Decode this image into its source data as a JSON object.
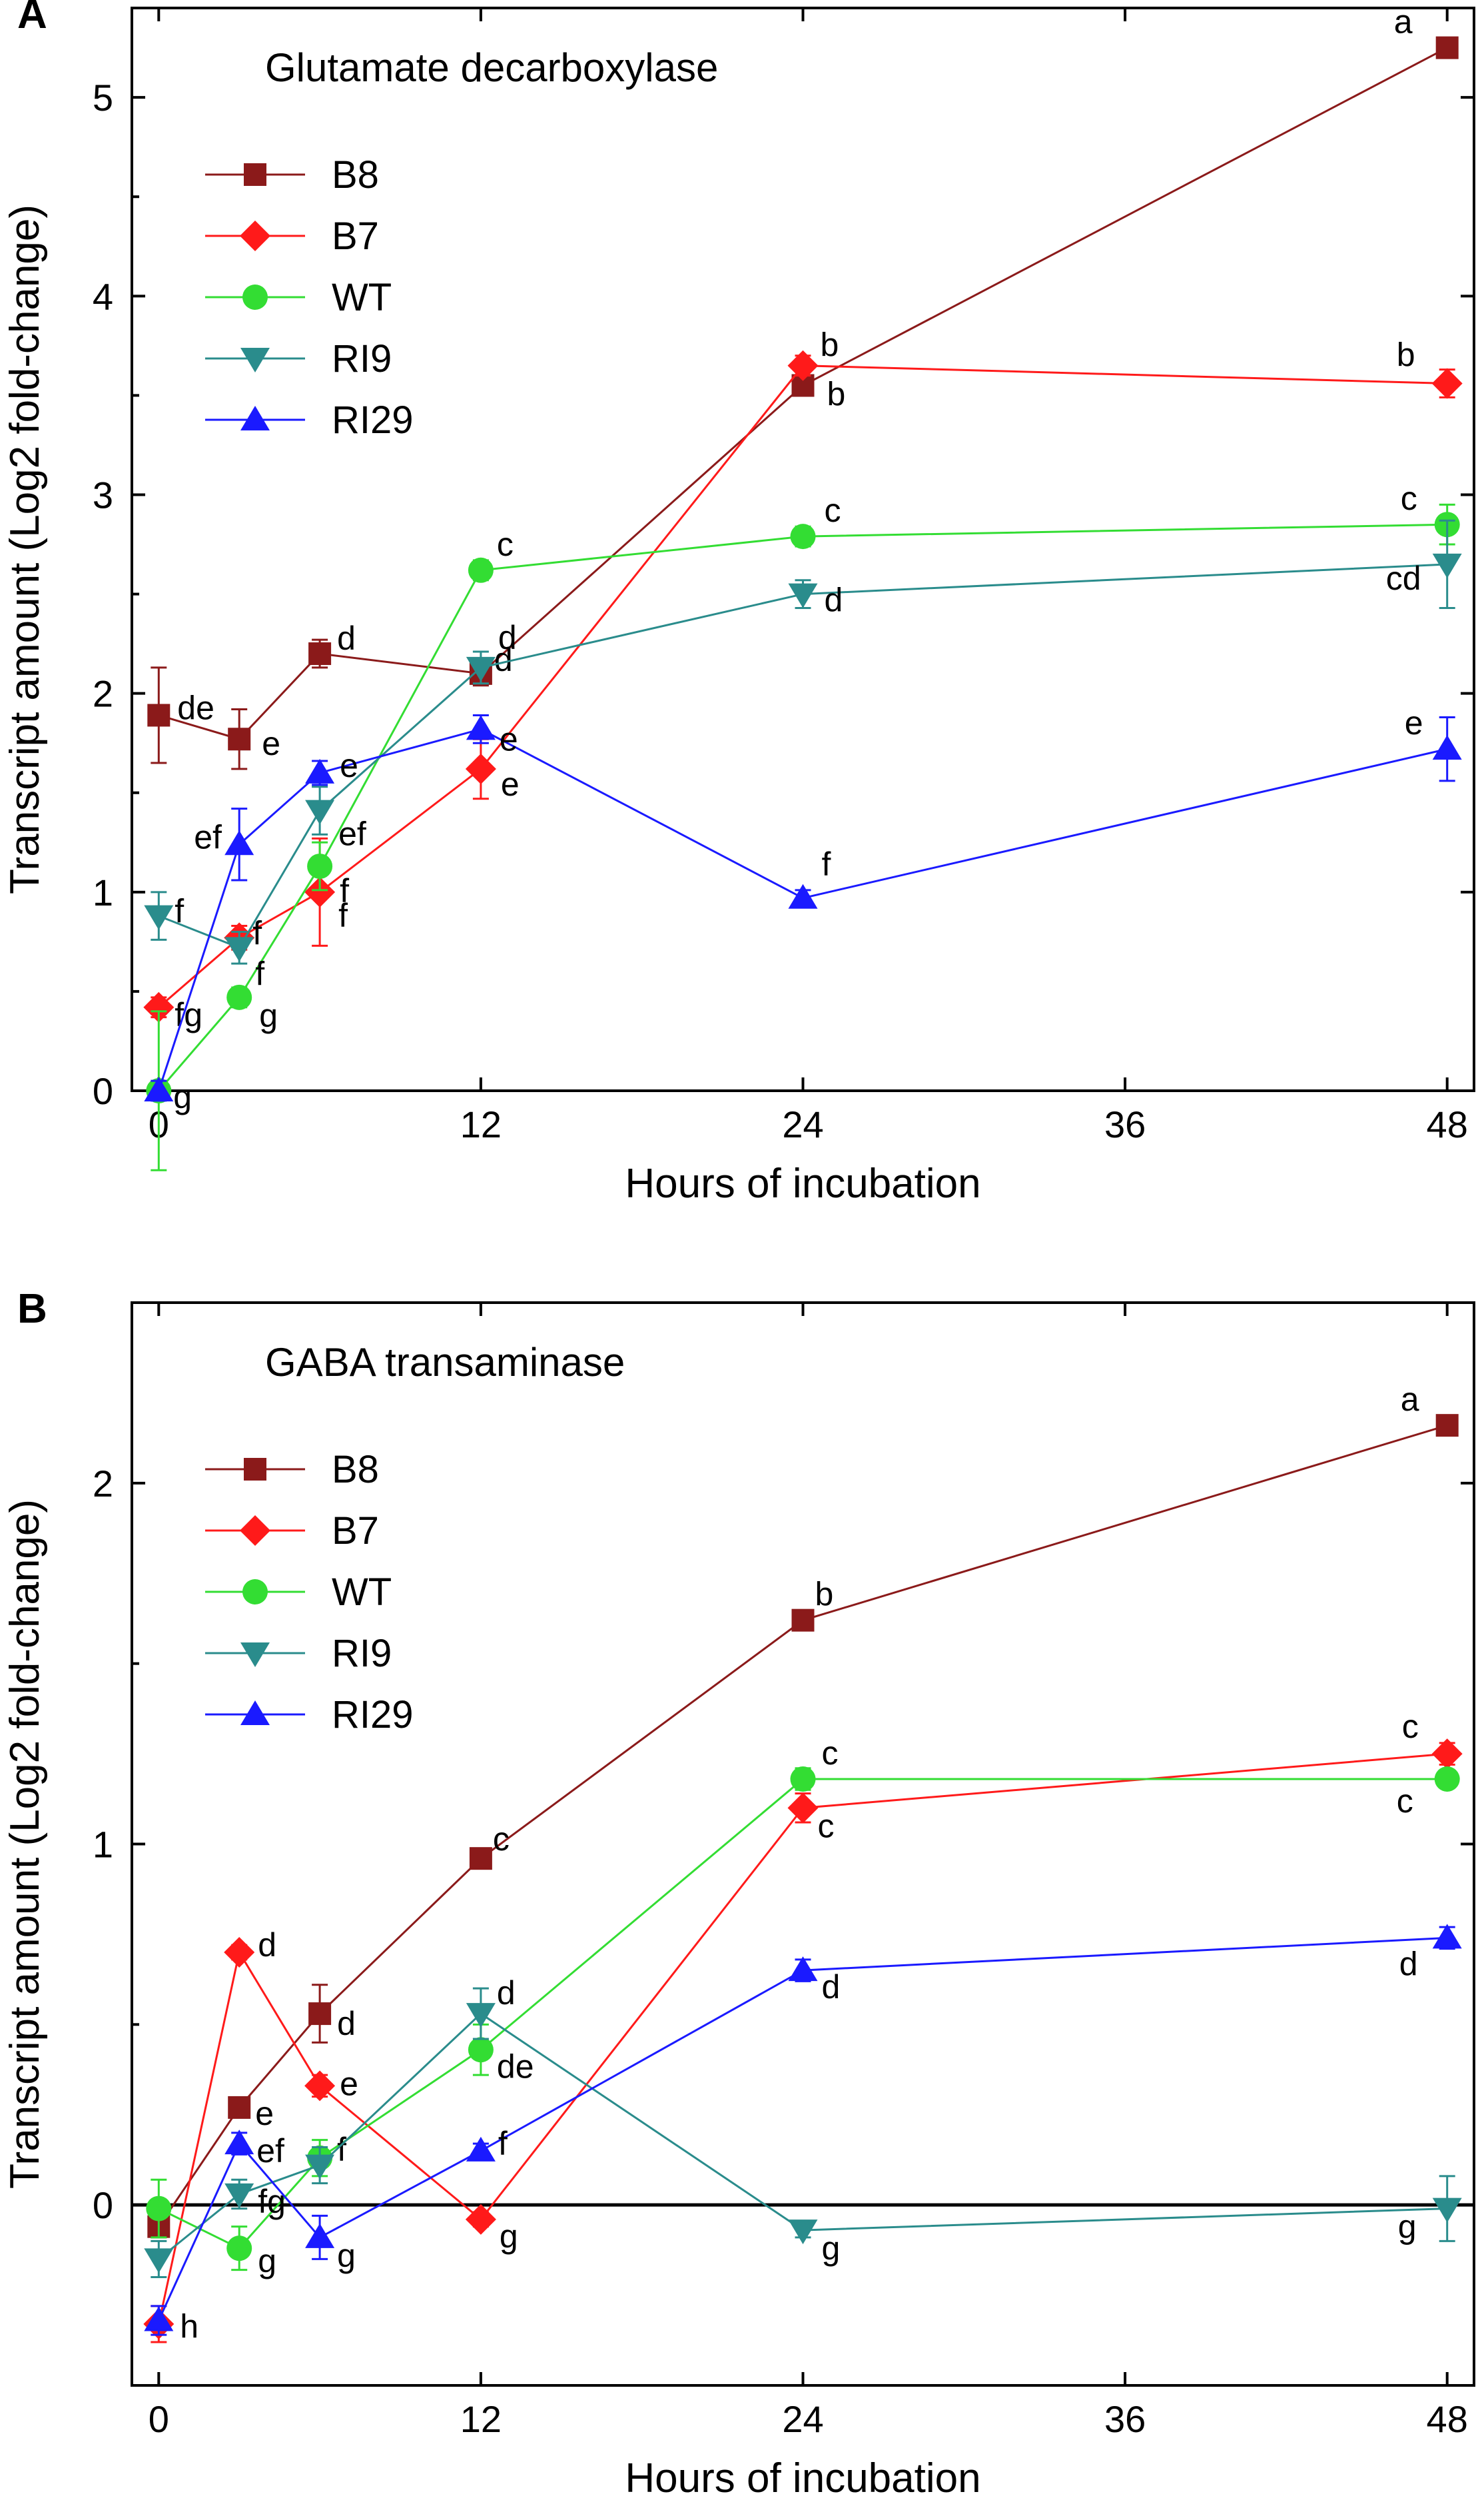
{
  "chart_data": [
    {
      "panel": "A",
      "type": "line",
      "title": "Glutamate decarboxylase",
      "xlabel": "Hours of incubation",
      "ylabel": "Transcript amount (Log2 fold-change)",
      "xlim": [
        -1,
        49
      ],
      "ylim": [
        0,
        5.45
      ],
      "xticks": [
        0,
        12,
        24,
        36,
        48
      ],
      "yticks": [
        0,
        1,
        2,
        3,
        4,
        5
      ],
      "x": [
        0,
        3,
        6,
        12,
        24,
        48
      ],
      "legend_position": "top-left",
      "series": [
        {
          "name": "B8",
          "color": "#8b1a1a",
          "marker": "square",
          "values": [
            1.89,
            1.77,
            2.2,
            2.1,
            3.55,
            5.25
          ],
          "errors": [
            0.24,
            0.15,
            0.07,
            0.06,
            0.05,
            0.04
          ],
          "labels": [
            "de",
            "e",
            "d",
            "d",
            "b",
            "a"
          ]
        },
        {
          "name": "B7",
          "color": "#ff1a1a",
          "marker": "diamond",
          "values": [
            0.42,
            0.77,
            1.0,
            1.62,
            3.65,
            3.56
          ],
          "errors": [
            0.05,
            0.06,
            0.27,
            0.15,
            0.05,
            0.07
          ],
          "labels": [
            "fg",
            "f",
            "f",
            "e",
            "b",
            "b"
          ]
        },
        {
          "name": "WT",
          "color": "#33dd33",
          "marker": "circle",
          "values": [
            0.0,
            0.47,
            1.13,
            2.62,
            2.79,
            2.85
          ],
          "errors": [
            0.4,
            0.05,
            0.12,
            0.05,
            0.05,
            0.1
          ],
          "labels": [
            "g",
            "g",
            "f",
            "c",
            "c",
            "c"
          ]
        },
        {
          "name": "RI9",
          "color": "#2a8c8c",
          "marker": "triangle-down",
          "values": [
            0.88,
            0.72,
            1.41,
            2.13,
            2.5,
            2.65
          ],
          "errors": [
            0.12,
            0.08,
            0.12,
            0.08,
            0.07,
            0.22
          ],
          "labels": [
            "f",
            "f",
            "ef",
            "d",
            "d",
            "cd"
          ]
        },
        {
          "name": "RI29",
          "color": "#1a1aff",
          "marker": "triangle-up",
          "values": [
            0.0,
            1.24,
            1.6,
            1.82,
            0.97,
            1.72
          ],
          "errors": [
            0.05,
            0.18,
            0.06,
            0.07,
            0.04,
            0.16
          ],
          "labels": [
            "",
            "ef",
            "e",
            "e",
            "f",
            "e"
          ]
        }
      ]
    },
    {
      "panel": "B",
      "type": "line",
      "title": "GABA transaminase",
      "xlabel": "Hours of incubation",
      "ylabel": "Transcript amount (Log2 fold-change)",
      "xlim": [
        -1,
        49
      ],
      "ylim": [
        -0.5,
        2.5
      ],
      "xticks": [
        0,
        12,
        24,
        36,
        48
      ],
      "yticks": [
        0,
        1,
        2
      ],
      "zero_line": true,
      "x": [
        0,
        3,
        6,
        12,
        24,
        48
      ],
      "legend_position": "top-left",
      "series": [
        {
          "name": "B8",
          "color": "#8b1a1a",
          "marker": "square",
          "values": [
            -0.06,
            0.27,
            0.53,
            0.96,
            1.62,
            2.16
          ],
          "errors": [
            0.03,
            0.02,
            0.08,
            0.02,
            0.02,
            0.02
          ],
          "labels": [
            "",
            "e",
            "d",
            "c",
            "b",
            "a"
          ]
        },
        {
          "name": "B7",
          "color": "#ff1a1a",
          "marker": "diamond",
          "values": [
            -0.33,
            0.7,
            0.33,
            -0.04,
            1.1,
            1.25
          ],
          "errors": [
            0.05,
            0.02,
            0.03,
            0.02,
            0.04,
            0.03
          ],
          "labels": [
            "",
            "d",
            "e",
            "g",
            "c",
            "c"
          ]
        },
        {
          "name": "WT",
          "color": "#33dd33",
          "marker": "circle",
          "values": [
            -0.01,
            -0.12,
            0.13,
            0.43,
            1.18,
            1.18
          ],
          "errors": [
            0.08,
            0.06,
            0.05,
            0.07,
            0.03,
            0.02
          ],
          "labels": [
            "",
            "g",
            "f",
            "de",
            "c",
            "c"
          ]
        },
        {
          "name": "RI9",
          "color": "#2a8c8c",
          "marker": "triangle-down",
          "values": [
            -0.15,
            0.03,
            0.11,
            0.53,
            -0.07,
            -0.01
          ],
          "errors": [
            0.05,
            0.04,
            0.05,
            0.07,
            0.02,
            0.09
          ],
          "labels": [
            "",
            "fg",
            "",
            "d",
            "g",
            "g"
          ]
        },
        {
          "name": "RI29",
          "color": "#1a1aff",
          "marker": "triangle-up",
          "values": [
            -0.32,
            0.17,
            -0.09,
            0.15,
            0.65,
            0.74
          ],
          "errors": [
            0.04,
            0.03,
            0.06,
            0.02,
            0.03,
            0.03
          ],
          "labels": [
            "h",
            "ef",
            "g",
            "f",
            "d",
            "d"
          ]
        }
      ]
    }
  ]
}
